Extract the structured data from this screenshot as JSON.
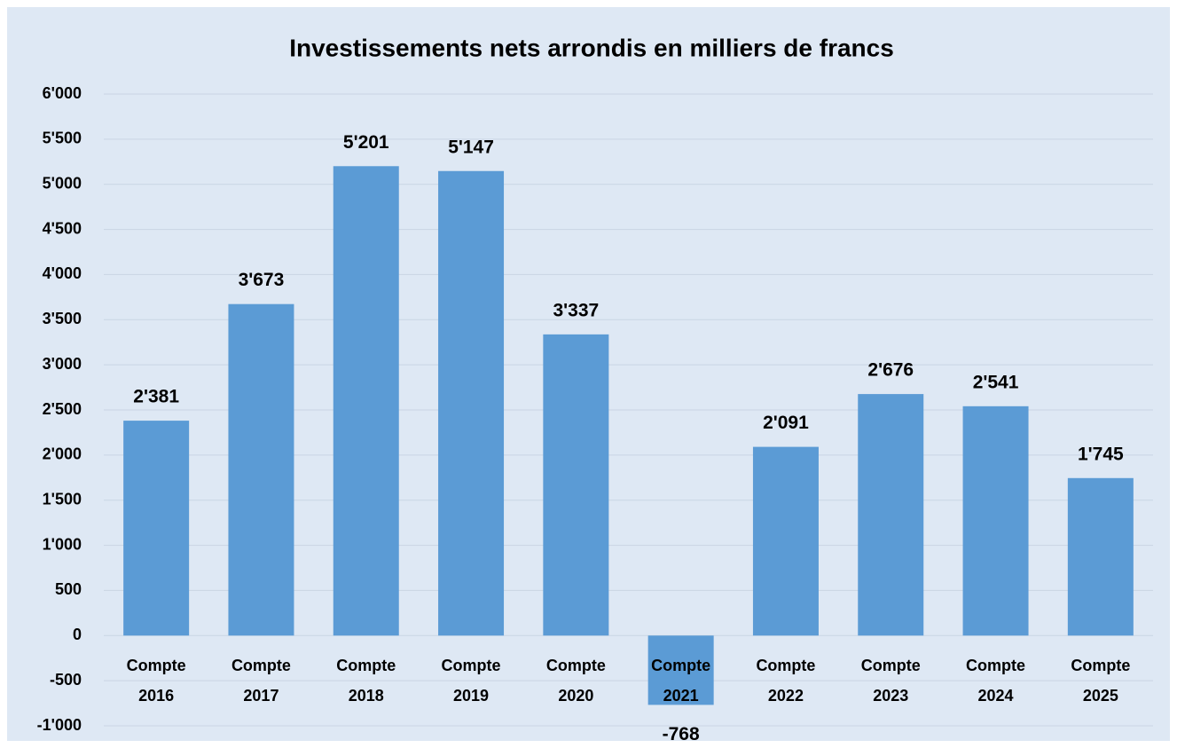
{
  "chart_data": {
    "type": "bar",
    "title": "Investissements nets arrondis en milliers de francs",
    "categories": [
      "Compte 2016",
      "Compte 2017",
      "Compte 2018",
      "Compte 2019",
      "Compte 2020",
      "Compte 2021",
      "Compte 2022",
      "Compte 2023",
      "Compte 2024",
      "Compte 2025"
    ],
    "values": [
      2381,
      3673,
      5201,
      5147,
      3337,
      -768,
      2091,
      2676,
      2541,
      1745
    ],
    "value_labels": [
      "2'381",
      "3'673",
      "5'201",
      "5'147",
      "3'337",
      "-768",
      "2'091",
      "2'676",
      "2'541",
      "1'745"
    ],
    "color": "#5b9bd5",
    "ylim": [
      -1000,
      6000
    ],
    "yticks": [
      {
        "value": -1000,
        "label": "-1'000"
      },
      -500,
      0,
      500,
      {
        "value": 1000,
        "label": "1'000"
      },
      {
        "value": 1500,
        "label": "1'500"
      },
      {
        "value": 2000,
        "label": "2'000"
      },
      {
        "value": 2500,
        "label": "2'500"
      },
      {
        "value": 3000,
        "label": "3'000"
      },
      {
        "value": 3500,
        "label": "3'500"
      },
      {
        "value": 4000,
        "label": "4'000"
      },
      {
        "value": 4500,
        "label": "4'500"
      },
      {
        "value": 5000,
        "label": "5'000"
      },
      {
        "value": 5500,
        "label": "5'500"
      },
      {
        "value": 6000,
        "label": "6'000"
      }
    ],
    "grid": true
  }
}
